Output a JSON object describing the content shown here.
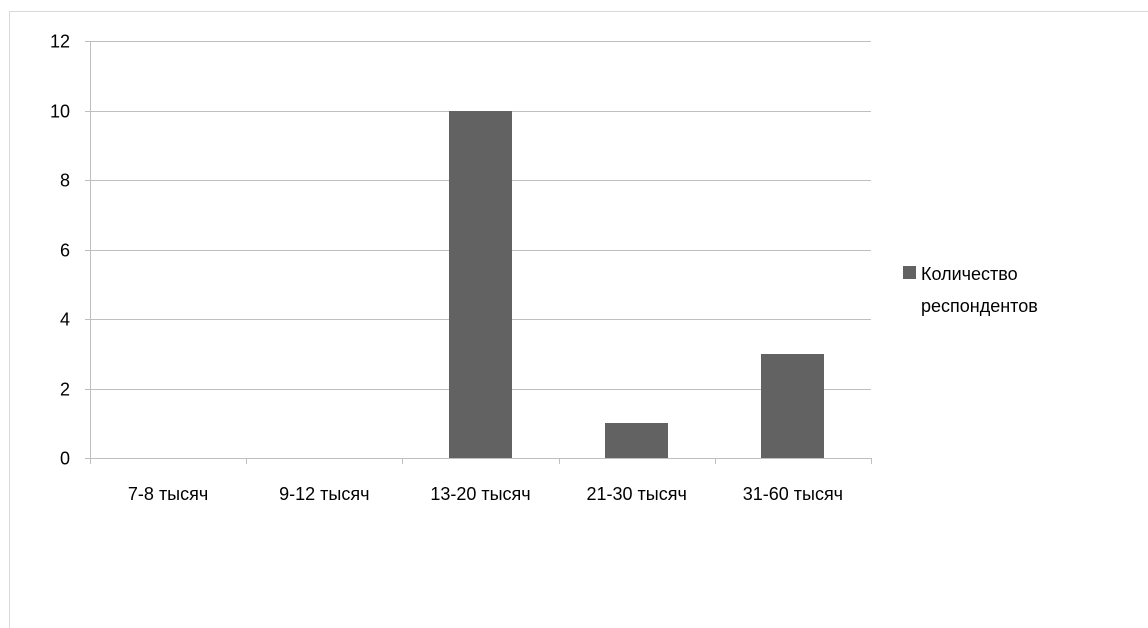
{
  "chart_data": {
    "type": "bar",
    "title": "",
    "xlabel": "",
    "ylabel": "",
    "categories": [
      "7-8 тысяч",
      "9-12 тысяч",
      "13-20 тысяч",
      "21-30 тысяч",
      "31-60 тысяч"
    ],
    "series": [
      {
        "name": "Количество респондентов",
        "values": [
          0,
          0,
          10,
          1,
          3
        ],
        "color": "#626262"
      }
    ],
    "ylim": [
      0,
      12
    ],
    "yticks": [
      0,
      2,
      4,
      6,
      8,
      10,
      12
    ],
    "ytick_labels": [
      "0",
      "2",
      "4",
      "6",
      "8",
      "10",
      "12"
    ],
    "grid": true,
    "gridline_color": "#bfbfbf",
    "legend": {
      "position": "right",
      "lines": [
        "Количество",
        "респондентов"
      ]
    }
  }
}
